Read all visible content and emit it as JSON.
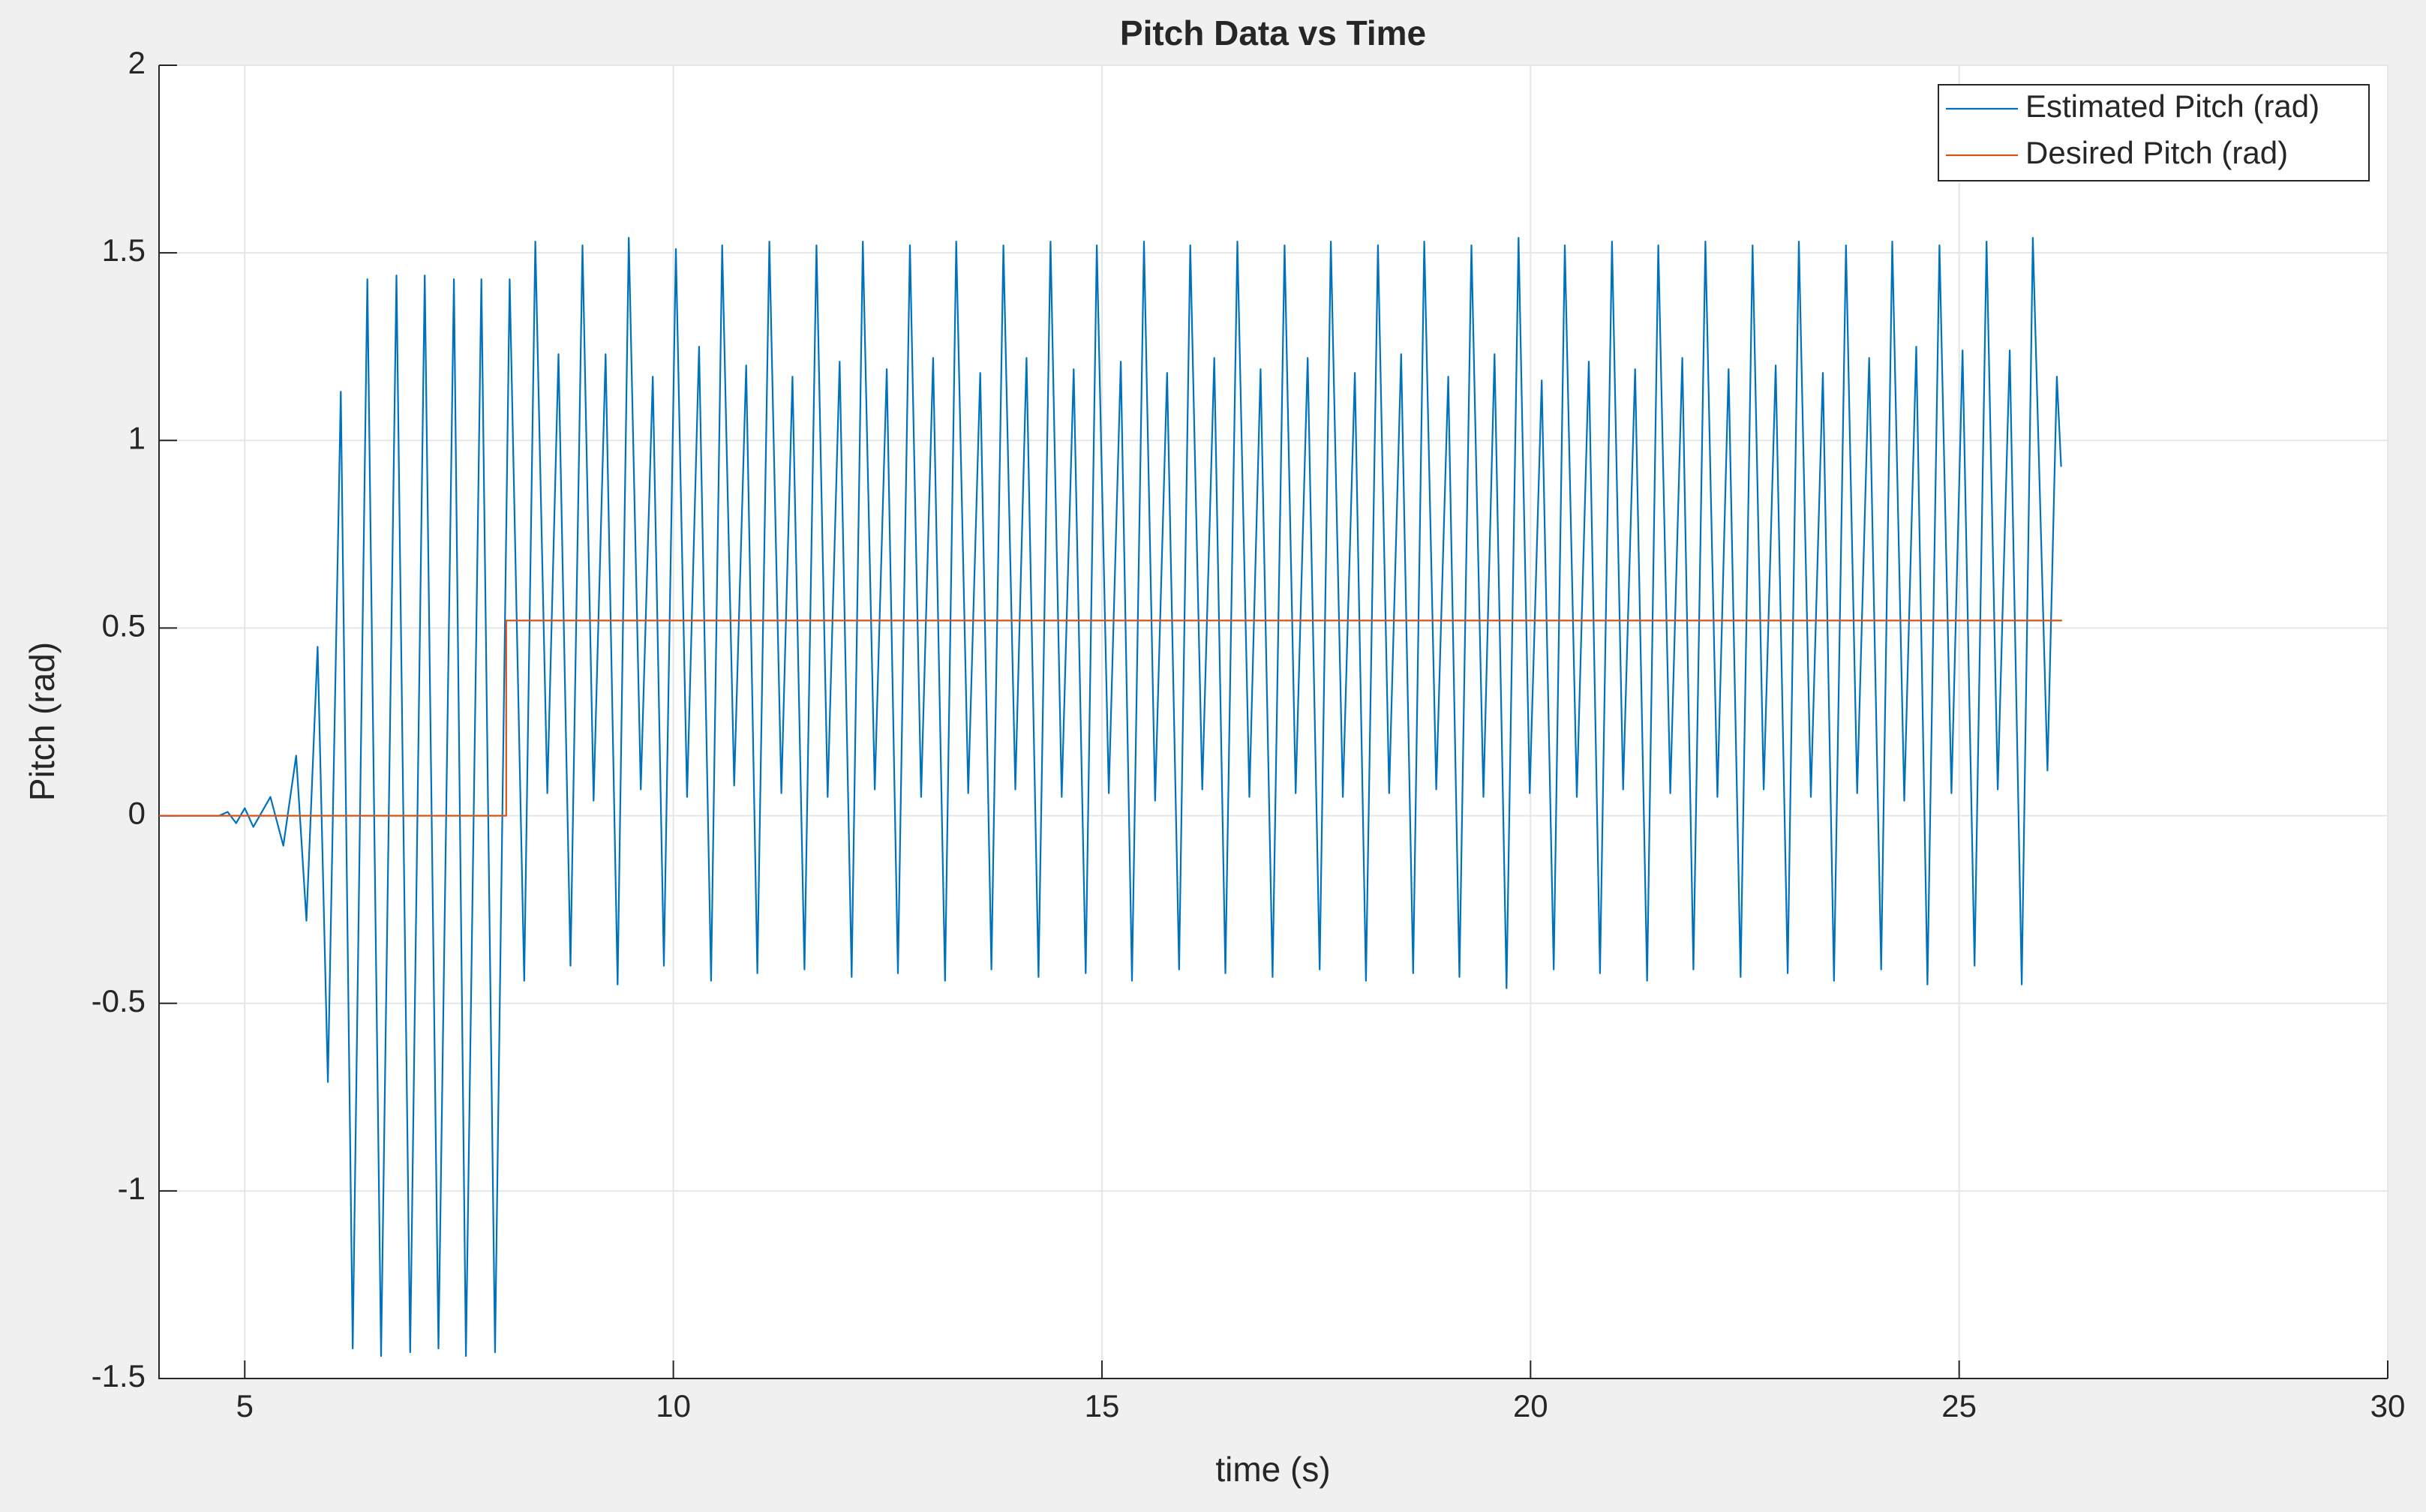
{
  "chart_data": {
    "type": "line",
    "title": "Pitch Data vs Time",
    "xlabel": "time (s)",
    "ylabel": "Pitch (rad)",
    "xlim": [
      4,
      30
    ],
    "xticks": [
      5,
      10,
      15,
      20,
      25,
      30
    ],
    "ylim": [
      -1.5,
      2
    ],
    "yticks": [
      -1.5,
      -1,
      -0.5,
      0,
      0.5,
      1,
      1.5,
      2
    ],
    "grid": true,
    "legend": "northeast",
    "series": [
      {
        "name": "Estimated Pitch (rad)",
        "color": "#0072bd",
        "x": [
          4.0,
          4.7,
          4.8,
          4.9,
          5.0,
          5.1,
          5.3,
          5.45,
          5.6,
          5.72,
          5.85,
          5.97,
          6.12,
          6.26,
          6.43,
          6.59,
          6.77,
          6.93,
          7.1,
          7.26,
          7.44,
          7.58,
          7.76,
          7.92,
          8.09,
          8.26,
          8.39,
          8.53,
          8.66,
          8.8,
          8.94,
          9.07,
          9.21,
          9.35,
          9.48,
          9.62,
          9.76,
          9.89,
          10.03,
          10.16,
          10.3,
          10.44,
          10.57,
          10.71,
          10.85,
          10.98,
          11.12,
          11.26,
          11.39,
          11.53,
          11.67,
          11.8,
          11.94,
          12.08,
          12.21,
          12.35,
          12.49,
          12.62,
          12.76,
          12.89,
          13.03,
          13.17,
          13.3,
          13.44,
          13.58,
          13.71,
          13.85,
          13.99,
          14.12,
          14.26,
          14.4,
          14.53,
          14.67,
          14.81,
          14.94,
          15.08,
          15.22,
          15.35,
          15.49,
          15.62,
          15.76,
          15.9,
          16.03,
          16.17,
          16.31,
          16.44,
          16.58,
          16.72,
          16.85,
          16.99,
          17.13,
          17.26,
          17.4,
          17.54,
          17.67,
          17.81,
          17.95,
          18.08,
          18.22,
          18.35,
          18.49,
          18.63,
          18.76,
          18.9,
          19.04,
          19.17,
          19.31,
          19.45,
          19.58,
          19.72,
          19.86,
          19.99,
          20.13,
          20.27,
          20.4,
          20.54,
          20.68,
          20.81,
          20.95,
          21.08,
          21.22,
          21.36,
          21.49,
          21.63,
          21.77,
          21.9,
          22.04,
          22.18,
          22.31,
          22.45,
          22.59,
          22.72,
          22.86,
          23.0,
          23.13,
          23.27,
          23.41,
          23.54,
          23.68,
          23.81,
          23.95,
          24.09,
          24.22,
          24.36,
          24.5,
          24.63,
          24.77,
          24.91,
          25.04,
          25.18,
          25.32,
          25.45,
          25.59,
          25.73,
          25.86,
          26.03,
          26.14,
          26.19
        ],
        "values": [
          0,
          0,
          0.01,
          -0.02,
          0.02,
          -0.03,
          0.05,
          -0.08,
          0.16,
          -0.28,
          0.45,
          -0.71,
          1.13,
          -1.42,
          1.43,
          -1.44,
          1.44,
          -1.43,
          1.44,
          -1.42,
          1.43,
          -1.44,
          1.43,
          -1.43,
          1.43,
          -0.44,
          1.53,
          0.06,
          1.23,
          -0.4,
          1.52,
          0.04,
          1.23,
          -0.45,
          1.54,
          0.07,
          1.17,
          -0.4,
          1.51,
          0.05,
          1.25,
          -0.44,
          1.52,
          0.08,
          1.2,
          -0.42,
          1.53,
          0.06,
          1.17,
          -0.41,
          1.52,
          0.05,
          1.21,
          -0.43,
          1.53,
          0.07,
          1.19,
          -0.42,
          1.52,
          0.05,
          1.22,
          -0.44,
          1.53,
          0.06,
          1.18,
          -0.41,
          1.52,
          0.07,
          1.22,
          -0.43,
          1.53,
          0.05,
          1.19,
          -0.42,
          1.52,
          0.06,
          1.21,
          -0.44,
          1.53,
          0.04,
          1.18,
          -0.41,
          1.52,
          0.07,
          1.22,
          -0.42,
          1.53,
          0.05,
          1.19,
          -0.43,
          1.52,
          0.06,
          1.22,
          -0.41,
          1.53,
          0.05,
          1.18,
          -0.44,
          1.52,
          0.06,
          1.23,
          -0.42,
          1.53,
          0.07,
          1.17,
          -0.43,
          1.52,
          0.05,
          1.23,
          -0.46,
          1.54,
          0.06,
          1.16,
          -0.41,
          1.52,
          0.05,
          1.21,
          -0.42,
          1.53,
          0.07,
          1.19,
          -0.44,
          1.52,
          0.06,
          1.22,
          -0.41,
          1.53,
          0.05,
          1.19,
          -0.43,
          1.52,
          0.07,
          1.2,
          -0.42,
          1.53,
          0.05,
          1.18,
          -0.44,
          1.52,
          0.06,
          1.22,
          -0.41,
          1.53,
          0.04,
          1.25,
          -0.45,
          1.52,
          0.06,
          1.24,
          -0.4,
          1.53,
          0.07,
          1.24,
          -0.45,
          1.54,
          0.12,
          1.17,
          0.93
        ]
      },
      {
        "name": "Desired Pitch (rad)",
        "color": "#d95319",
        "x": [
          4.0,
          8.05,
          8.05,
          26.2
        ],
        "values": [
          0,
          0,
          0.52,
          0.52
        ]
      }
    ]
  }
}
